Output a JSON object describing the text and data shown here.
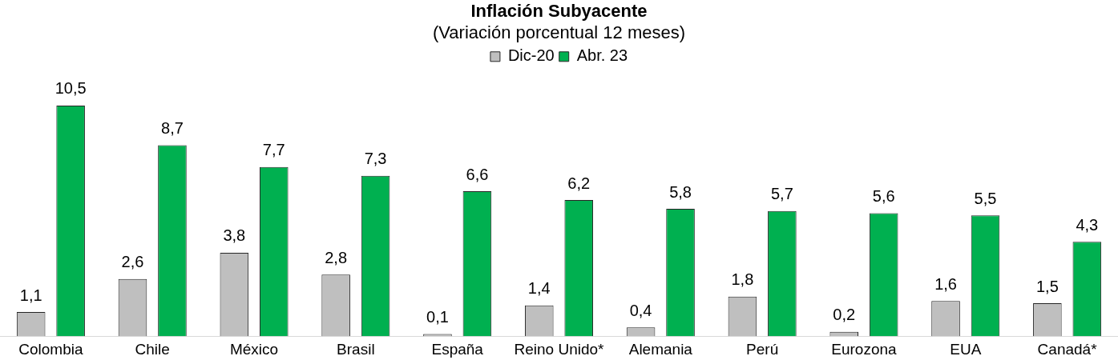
{
  "chart_data": {
    "type": "bar",
    "title": "Inflación Subyacente",
    "subtitle": "(Variación porcentual 12 meses)",
    "categories": [
      "Colombia",
      "Chile",
      "México",
      "Brasil",
      "España",
      "Reino Unido*",
      "Alemania",
      "Perú",
      "Eurozona",
      "EUA",
      "Canadá*"
    ],
    "series": [
      {
        "name": "Dic-20",
        "color": "#bfbfbf",
        "values": [
          1.1,
          2.6,
          3.8,
          2.8,
          0.1,
          1.4,
          0.4,
          1.8,
          0.2,
          1.6,
          1.5
        ],
        "value_labels": [
          "1,1",
          "2,6",
          "3,8",
          "2,8",
          "0,1",
          "1,4",
          "0,4",
          "1,8",
          "0,2",
          "1,6",
          "1,5"
        ]
      },
      {
        "name": "Abr. 23",
        "color": "#00b050",
        "values": [
          10.5,
          8.7,
          7.7,
          7.3,
          6.6,
          6.2,
          5.8,
          5.7,
          5.6,
          5.5,
          4.3
        ],
        "value_labels": [
          "10,5",
          "8,7",
          "7,7",
          "7,3",
          "6,6",
          "6,2",
          "5,8",
          "5,7",
          "5,6",
          "5,5",
          "4,3"
        ]
      }
    ],
    "legend": "top",
    "grid": false
  }
}
